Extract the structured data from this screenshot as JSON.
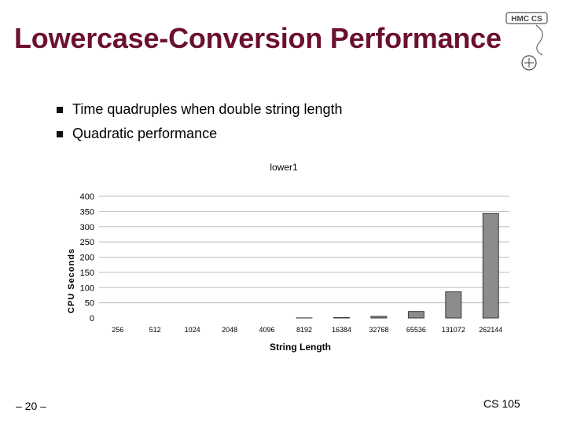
{
  "slide": {
    "title": "Lowercase-Conversion Performance",
    "bullets": [
      "Time quadruples when double string length",
      "Quadratic performance"
    ],
    "page_number": "– 20 –",
    "course": "CS 105",
    "logo": {
      "text": "HMC CS",
      "icon": "hmc-cs-logo-icon"
    }
  },
  "colors": {
    "title": "#6b1030",
    "bar_fill": "#8c8c8c",
    "bar_stroke": "#3a3a3a",
    "grid": "#bdbdbd"
  },
  "chart_data": {
    "type": "bar",
    "title": "lower1",
    "xlabel": "String Length",
    "ylabel": "CPU Seconds",
    "categories": [
      "256",
      "512",
      "1024",
      "2048",
      "4096",
      "8192",
      "16384",
      "32768",
      "65536",
      "131072",
      "262144"
    ],
    "values": [
      0,
      0,
      0,
      0,
      0,
      0.3,
      1.3,
      5.4,
      21.5,
      86,
      344
    ],
    "ylim": [
      0,
      400
    ],
    "yticks": [
      0,
      50,
      100,
      150,
      200,
      250,
      300,
      350,
      400
    ],
    "grid": true,
    "legend": "none"
  }
}
